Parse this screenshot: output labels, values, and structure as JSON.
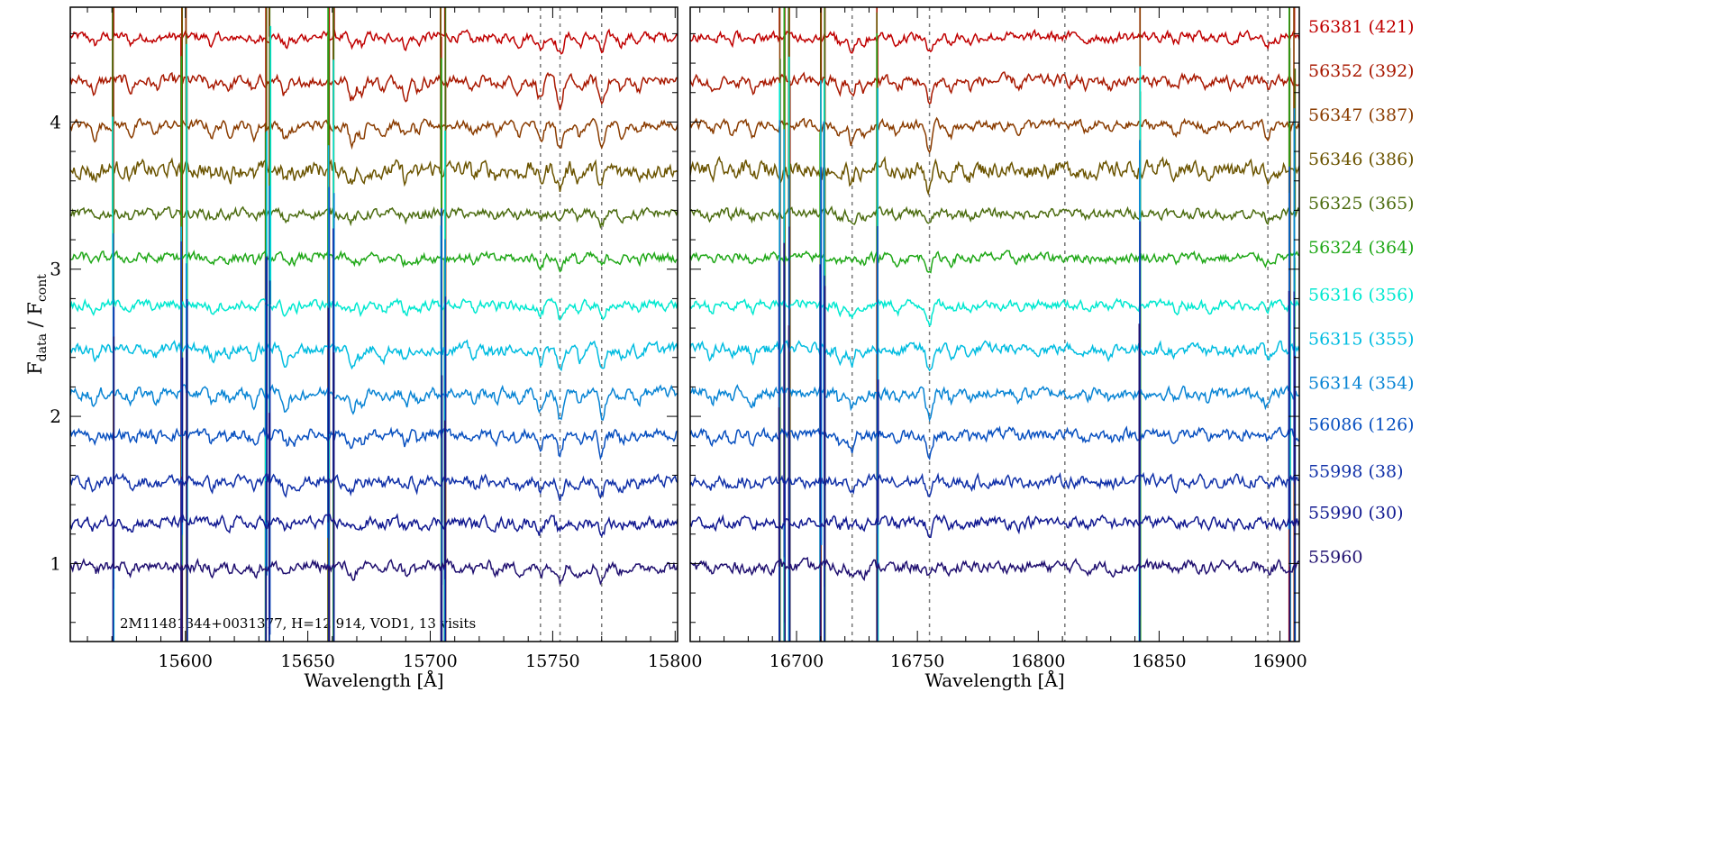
{
  "chart_data": {
    "type": "line",
    "title": "",
    "ylabel": {
      "main1": "F",
      "sub1": "data",
      "sep": " / ",
      "main2": "F",
      "sub2": "cont"
    },
    "ylim": [
      0.47,
      4.78
    ],
    "yticks": [
      1,
      2,
      3,
      4
    ],
    "annotation": "2M11481344+0031377,    H=12.914,    VOD1,    13 visits",
    "panels": [
      {
        "xlabel": "Wavelength [Å]",
        "xlim": [
          15553,
          15801
        ],
        "xticks": [
          15600,
          15650,
          15700,
          15750,
          15800
        ],
        "dashed_lines": [
          15745,
          15753,
          15770
        ],
        "absorption": [
          [
            15563,
            0.08
          ],
          [
            15578,
            0.06
          ],
          [
            15588,
            0.05
          ],
          [
            15611,
            0.07
          ],
          [
            15618,
            0.05
          ],
          [
            15628,
            0.08
          ],
          [
            15641,
            0.1
          ],
          [
            15645,
            0.06
          ],
          [
            15668,
            0.12
          ],
          [
            15672,
            0.08
          ],
          [
            15681,
            0.06
          ],
          [
            15690,
            0.09
          ],
          [
            15695,
            0.06
          ],
          [
            15718,
            0.06
          ],
          [
            15727,
            0.05
          ],
          [
            15736,
            0.06
          ],
          [
            15745,
            0.12
          ],
          [
            15753,
            0.18
          ],
          [
            15761,
            0.08
          ],
          [
            15770,
            0.16
          ],
          [
            15778,
            0.06
          ],
          [
            15785,
            0.05
          ]
        ],
        "spikes": [
          15570.5,
          15598.5,
          15600.5,
          15633,
          15634.5,
          15658.5,
          15660.5,
          15704.5,
          15706
        ]
      },
      {
        "xlabel": "Wavelength [Å]",
        "xlim": [
          16656,
          16908
        ],
        "xticks": [
          16700,
          16750,
          16800,
          16850,
          16900
        ],
        "dashed_lines": [
          16723,
          16755,
          16811,
          16895
        ],
        "absorption": [
          [
            16665,
            0.06
          ],
          [
            16673,
            0.05
          ],
          [
            16682,
            0.08
          ],
          [
            16718,
            0.07
          ],
          [
            16723,
            0.12
          ],
          [
            16728,
            0.06
          ],
          [
            16742,
            0.06
          ],
          [
            16755,
            0.18
          ],
          [
            16764,
            0.06
          ],
          [
            16772,
            0.05
          ],
          [
            16792,
            0.04
          ],
          [
            16820,
            0.04
          ],
          [
            16830,
            0.05
          ],
          [
            16857,
            0.05
          ],
          [
            16870,
            0.05
          ],
          [
            16880,
            0.04
          ],
          [
            16895,
            0.08
          ]
        ],
        "spikes": [
          16693,
          16695,
          16697,
          16710,
          16711.5,
          16733.5,
          16842,
          16904,
          16906
        ]
      }
    ],
    "series": [
      {
        "name": "56381 (421)",
        "color": "#c00000",
        "offset": 4.58,
        "noise": 0.03
      },
      {
        "name": "56352 (392)",
        "color": "#a81800",
        "offset": 4.28,
        "noise": 0.035
      },
      {
        "name": "56347 (387)",
        "color": "#8a3c00",
        "offset": 3.98,
        "noise": 0.03
      },
      {
        "name": "56346 (386)",
        "color": "#6b5400",
        "offset": 3.68,
        "noise": 0.05
      },
      {
        "name": "56325 (365)",
        "color": "#4c6c10",
        "offset": 3.38,
        "noise": 0.03
      },
      {
        "name": "56324 (364)",
        "color": "#20a818",
        "offset": 3.08,
        "noise": 0.03
      },
      {
        "name": "56316 (356)",
        "color": "#00e8d0",
        "offset": 2.76,
        "noise": 0.03
      },
      {
        "name": "56315 (355)",
        "color": "#00bce0",
        "offset": 2.46,
        "noise": 0.035
      },
      {
        "name": "56314 (354)",
        "color": "#0884d4",
        "offset": 2.16,
        "noise": 0.035
      },
      {
        "name": "56086 (126)",
        "color": "#0850c0",
        "offset": 1.88,
        "noise": 0.035
      },
      {
        "name": "55998 (38)",
        "color": "#1030a8",
        "offset": 1.56,
        "noise": 0.035
      },
      {
        "name": "55990 (30)",
        "color": "#101890",
        "offset": 1.28,
        "noise": 0.035
      },
      {
        "name": "55960",
        "color": "#201070",
        "offset": 0.98,
        "noise": 0.035
      }
    ]
  }
}
